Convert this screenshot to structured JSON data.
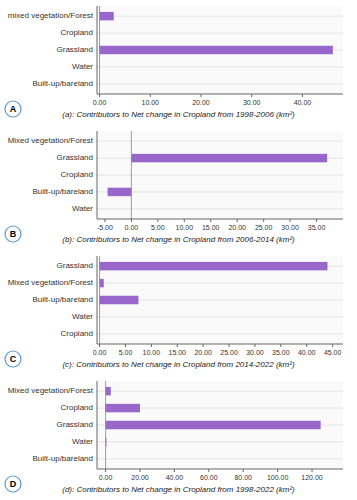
{
  "chart_data": [
    {
      "type": "bar",
      "orientation": "horizontal",
      "categories": [
        "mixed vegetation/Forest",
        "Cropland",
        "Grassland",
        "Water",
        "Built-up/bareland"
      ],
      "values": [
        2.8,
        0.0,
        46.0,
        0.0,
        0.0
      ],
      "color": "#9966CC",
      "xlim": [
        -0.5,
        48
      ],
      "xticks": [
        {
          "value": 0,
          "label": "0.00"
        },
        {
          "value": 10,
          "label": "10.00"
        },
        {
          "value": 20,
          "label": "20.00"
        },
        {
          "value": 30,
          "label": "30.00"
        },
        {
          "value": 40,
          "label": "40.00"
        }
      ],
      "xlabel": "(a): Contributors to Net change in Cropland from 1998-2006 (km²)",
      "annotations": [
        "A"
      ],
      "grid": true
    },
    {
      "type": "bar",
      "orientation": "horizontal",
      "categories": [
        "Mixed vegetation/Forest",
        "Grassland",
        "Cropland",
        "Built-up/bareland",
        "Water"
      ],
      "values": [
        0.0,
        37.0,
        0.0,
        -4.5,
        0.0
      ],
      "color": "#9966CC",
      "xlim": [
        -6.5,
        40
      ],
      "xticks": [
        {
          "value": -5,
          "label": "-5.00"
        },
        {
          "value": 0,
          "label": "0.00"
        },
        {
          "value": 5,
          "label": "5.00"
        },
        {
          "value": 10,
          "label": "10.00"
        },
        {
          "value": 15,
          "label": "15.00"
        },
        {
          "value": 20,
          "label": "20.00"
        },
        {
          "value": 25,
          "label": "25.00"
        },
        {
          "value": 30,
          "label": "30.00"
        },
        {
          "value": 35,
          "label": "35.00"
        }
      ],
      "xlabel": "(b): Contributors to Net change in Cropland from 2006-2014 (km²)",
      "annotations": [
        "B"
      ],
      "grid": true
    },
    {
      "type": "bar",
      "orientation": "horizontal",
      "categories": [
        "Grassland",
        "Mixed vegetation/Forest",
        "Built-up/bareland",
        "Water",
        "Cropland"
      ],
      "values": [
        44.0,
        0.8,
        7.5,
        0.0,
        0.0
      ],
      "color": "#9966CC",
      "xlim": [
        -0.5,
        47
      ],
      "xticks": [
        {
          "value": 0,
          "label": "0.00"
        },
        {
          "value": 5,
          "label": "5.00"
        },
        {
          "value": 10,
          "label": "10.00"
        },
        {
          "value": 15,
          "label": "15.00"
        },
        {
          "value": 20,
          "label": "20.00"
        },
        {
          "value": 25,
          "label": "25.00"
        },
        {
          "value": 30,
          "label": "30.00"
        },
        {
          "value": 35,
          "label": "35.00"
        },
        {
          "value": 40,
          "label": "40.00"
        },
        {
          "value": 45,
          "label": "45.00"
        }
      ],
      "xlabel": "(c): Contributors to Net change in Cropland from 2014-2022 (km²)",
      "annotations": [
        "C"
      ],
      "grid": true
    },
    {
      "type": "bar",
      "orientation": "horizontal",
      "categories": [
        "Mixed vegetation/Forest",
        "Cropland",
        "Grassland",
        "Water",
        "Built-up/bareland"
      ],
      "values": [
        3.0,
        20.0,
        125.0,
        0.5,
        0.0
      ],
      "color": "#9966CC",
      "xlim": [
        -5,
        138
      ],
      "xticks": [
        {
          "value": 0,
          "label": "0.00"
        },
        {
          "value": 20,
          "label": "20.00"
        },
        {
          "value": 40,
          "label": "40.00"
        },
        {
          "value": 60,
          "label": "60.00"
        },
        {
          "value": 80,
          "label": "80.00"
        },
        {
          "value": 100,
          "label": "100.00"
        },
        {
          "value": 120,
          "label": "120.00"
        }
      ],
      "xlabel": "(d): Contributors to Net change in Cropland from 1998-2022 (km²)",
      "annotations": [
        "D"
      ],
      "grid": true
    }
  ]
}
